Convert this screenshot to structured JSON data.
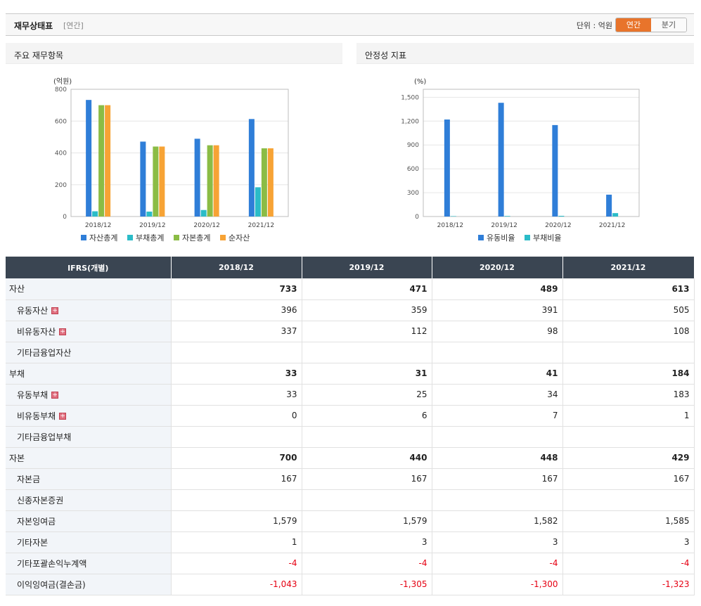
{
  "header": {
    "title": "재무상태표",
    "subtitle": "[연간]",
    "unit_label": "단위 : 억원",
    "toggle_active": "연간",
    "toggle_inactive": "분기",
    "accent_color": "#e8742b"
  },
  "panels": [
    {
      "title": "주요 재무항목"
    },
    {
      "title": "안정성 지표"
    }
  ],
  "chart_data": [
    {
      "type": "bar",
      "title": "",
      "unit_label": "(억원)",
      "categories": [
        "2018/12",
        "2019/12",
        "2020/12",
        "2021/12"
      ],
      "ylim": [
        0,
        800
      ],
      "yticks": [
        "0",
        "200",
        "400",
        "600",
        "800"
      ],
      "ytick_values": [
        0,
        200,
        400,
        600,
        800
      ],
      "grid": true,
      "legend_position": "bottom",
      "series": [
        {
          "name": "자산총계",
          "color": "#2f7ed8",
          "values": [
            733,
            471,
            489,
            613
          ]
        },
        {
          "name": "부채총계",
          "color": "#2bbcc8",
          "values": [
            33,
            31,
            41,
            184
          ]
        },
        {
          "name": "자본총계",
          "color": "#8bbc45",
          "values": [
            700,
            440,
            448,
            429
          ]
        },
        {
          "name": "순자산",
          "color": "#f7a335",
          "values": [
            700,
            440,
            448,
            429
          ]
        }
      ]
    },
    {
      "type": "bar",
      "title": "",
      "unit_label": "(%)",
      "categories": [
        "2018/12",
        "2019/12",
        "2020/12",
        "2021/12"
      ],
      "ylim": [
        0,
        1600
      ],
      "yticks": [
        "0",
        "300",
        "600",
        "900",
        "1,200",
        "1,500"
      ],
      "ytick_values": [
        0,
        300,
        600,
        900,
        1200,
        1500
      ],
      "grid": true,
      "legend_position": "bottom",
      "series": [
        {
          "name": "유동비율",
          "color": "#2f7ed8",
          "values": [
            1220,
            1430,
            1150,
            275
          ]
        },
        {
          "name": "부채비율",
          "color": "#2bbcc8",
          "values": [
            5,
            7,
            9,
            43
          ]
        }
      ]
    }
  ],
  "table": {
    "headers": [
      "IFRS(개별)",
      "2018/12",
      "2019/12",
      "2020/12",
      "2021/12"
    ],
    "rows": [
      {
        "label": "자산",
        "level": "main",
        "expand": false,
        "values": [
          "733",
          "471",
          "489",
          "613"
        ]
      },
      {
        "label": "유동자산",
        "level": "sub",
        "expand": true,
        "values": [
          "396",
          "359",
          "391",
          "505"
        ]
      },
      {
        "label": "비유동자산",
        "level": "sub",
        "expand": true,
        "values": [
          "337",
          "112",
          "98",
          "108"
        ]
      },
      {
        "label": "기타금융업자산",
        "level": "sub",
        "expand": false,
        "values": [
          "",
          "",
          "",
          ""
        ]
      },
      {
        "label": "부채",
        "level": "main",
        "expand": false,
        "values": [
          "33",
          "31",
          "41",
          "184"
        ]
      },
      {
        "label": "유동부채",
        "level": "sub",
        "expand": true,
        "values": [
          "33",
          "25",
          "34",
          "183"
        ]
      },
      {
        "label": "비유동부채",
        "level": "sub",
        "expand": true,
        "values": [
          "0",
          "6",
          "7",
          "1"
        ]
      },
      {
        "label": "기타금융업부채",
        "level": "sub",
        "expand": false,
        "values": [
          "",
          "",
          "",
          ""
        ]
      },
      {
        "label": "자본",
        "level": "main",
        "expand": false,
        "values": [
          "700",
          "440",
          "448",
          "429"
        ]
      },
      {
        "label": "자본금",
        "level": "sub",
        "expand": false,
        "values": [
          "167",
          "167",
          "167",
          "167"
        ]
      },
      {
        "label": "신종자본증권",
        "level": "sub",
        "expand": false,
        "values": [
          "",
          "",
          "",
          ""
        ]
      },
      {
        "label": "자본잉여금",
        "level": "sub",
        "expand": false,
        "values": [
          "1,579",
          "1,579",
          "1,582",
          "1,585"
        ]
      },
      {
        "label": "기타자본",
        "level": "sub",
        "expand": false,
        "values": [
          "1",
          "3",
          "3",
          "3"
        ]
      },
      {
        "label": "기타포괄손익누계액",
        "level": "sub",
        "expand": false,
        "values": [
          "-4",
          "-4",
          "-4",
          "-4"
        ]
      },
      {
        "label": "이익잉여금(결손금)",
        "level": "sub",
        "expand": false,
        "values": [
          "-1,043",
          "-1,305",
          "-1,300",
          "-1,323"
        ]
      }
    ]
  }
}
